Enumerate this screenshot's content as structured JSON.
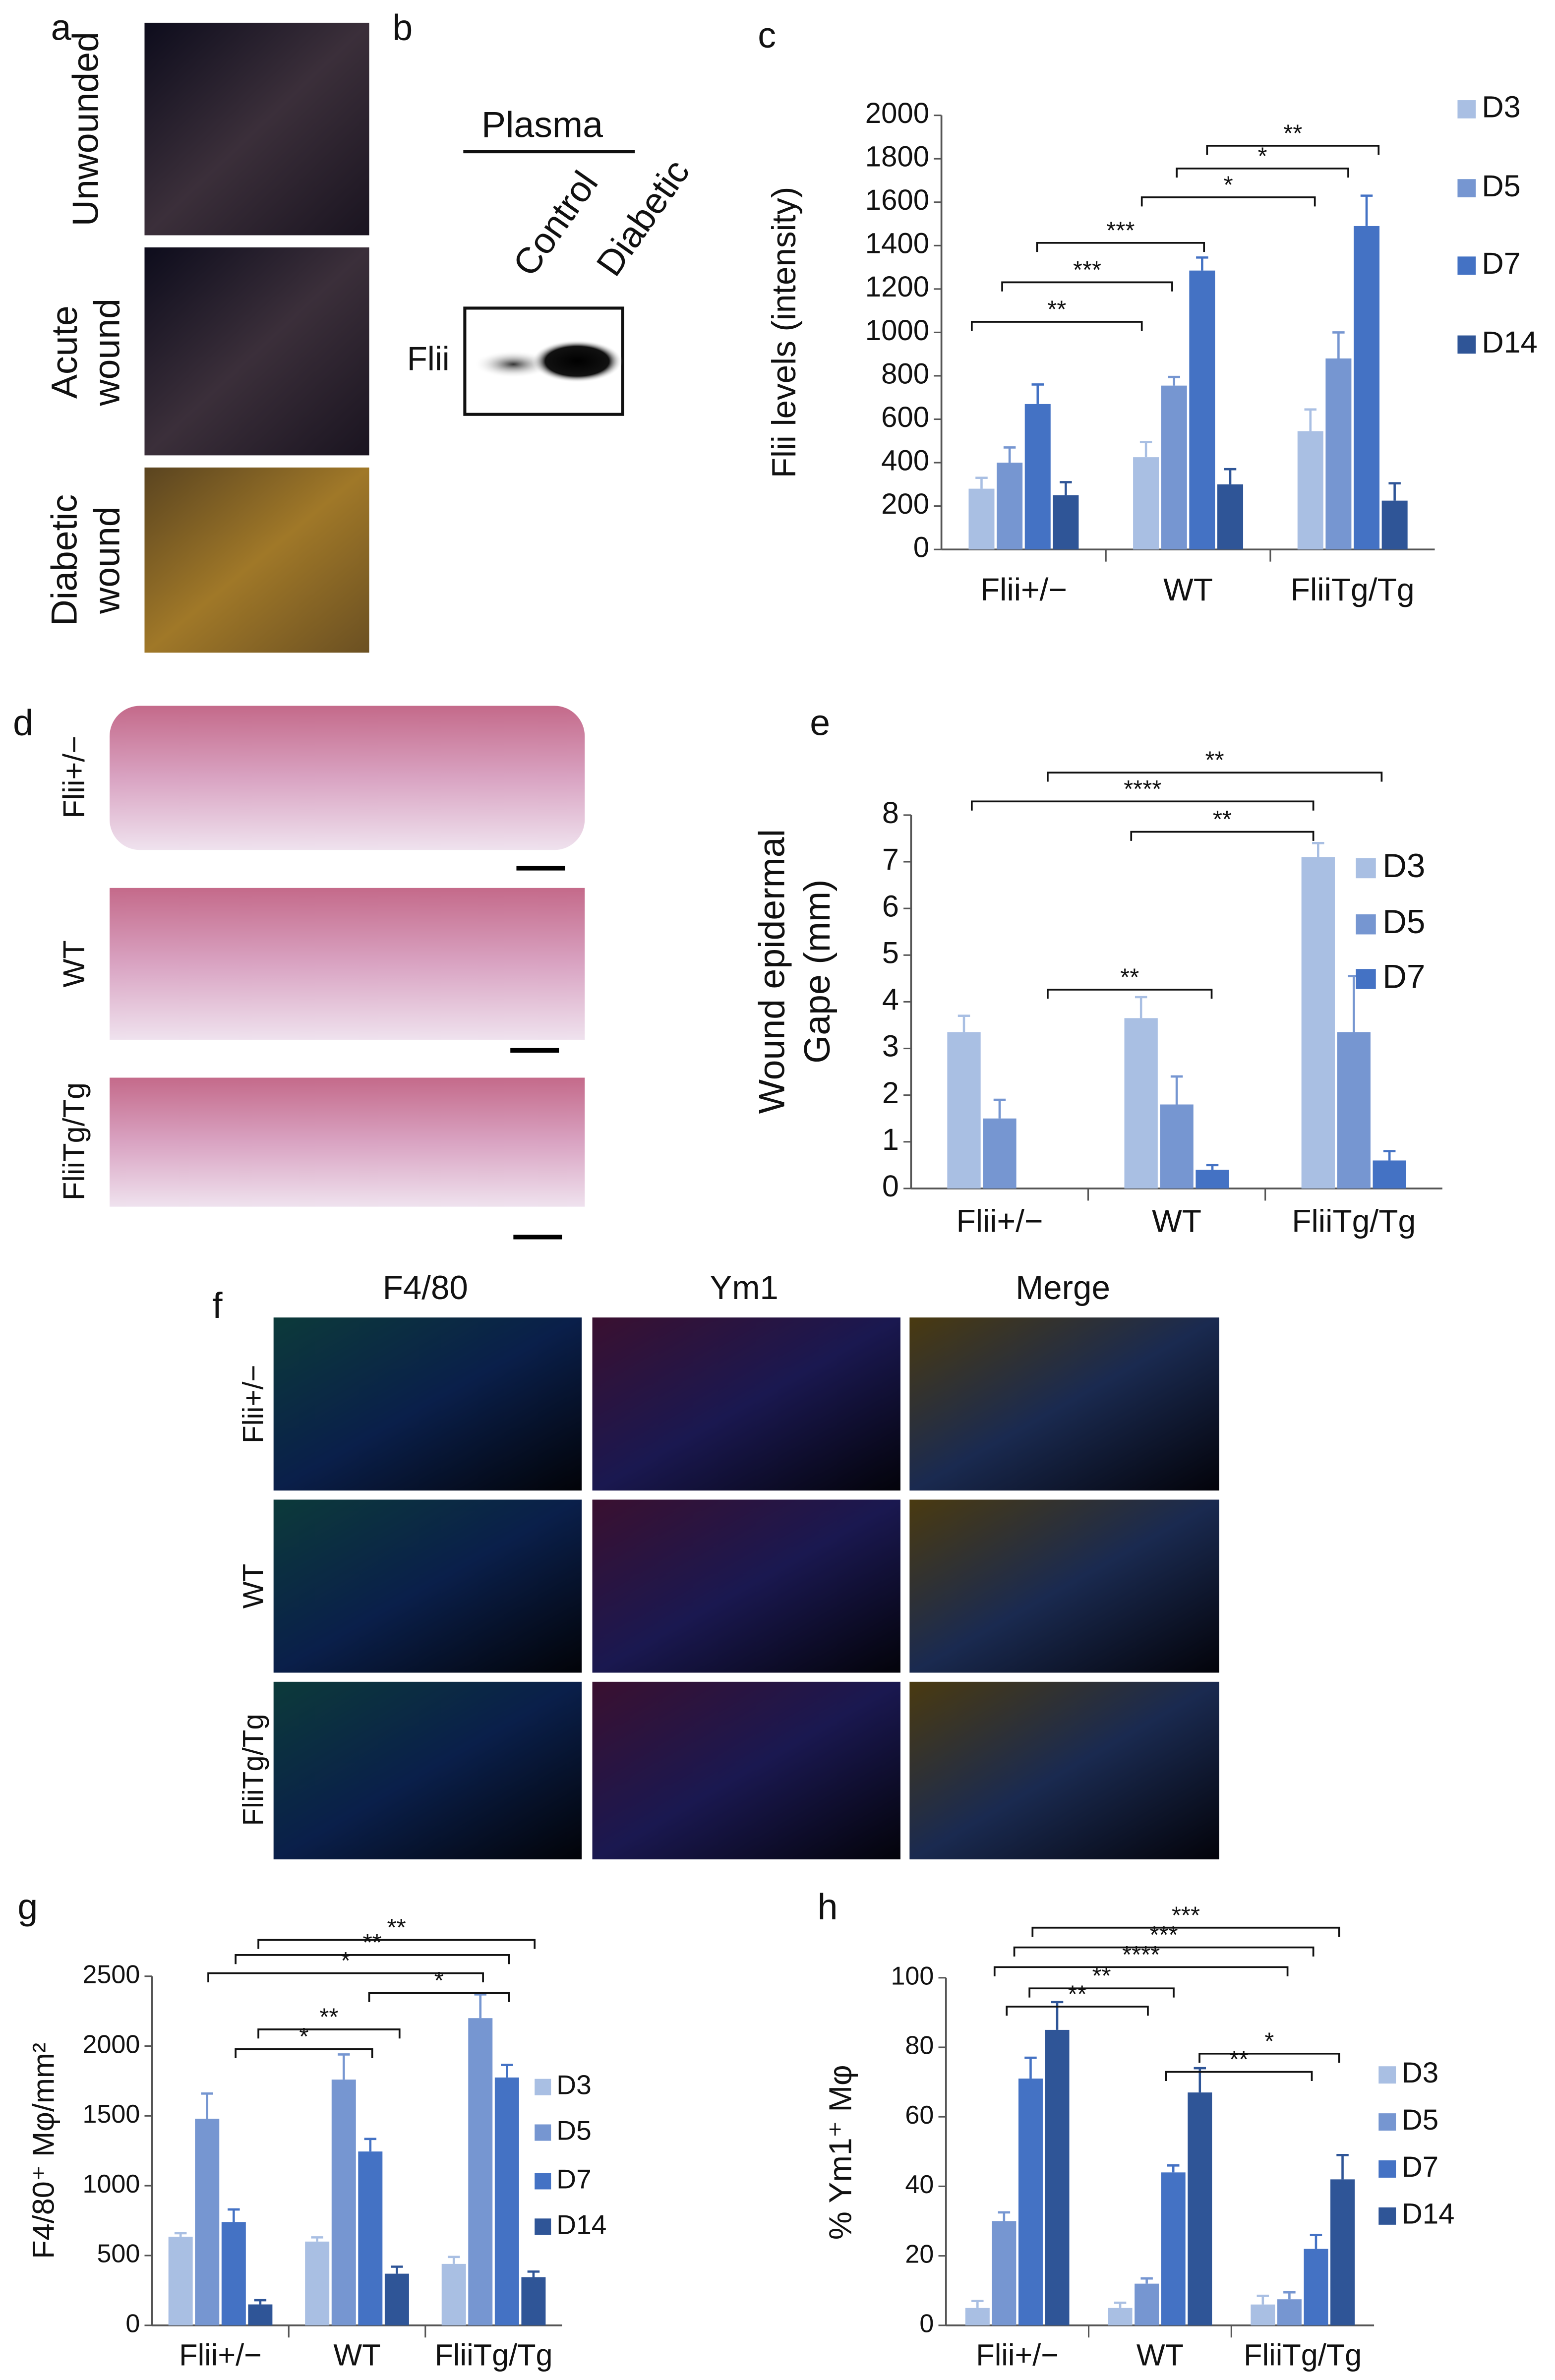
{
  "panel_labels": [
    "a",
    "b",
    "c",
    "d",
    "e",
    "f",
    "g",
    "h"
  ],
  "a": {
    "rows": [
      [
        "Unwounded"
      ],
      [
        "Acute",
        "wound"
      ],
      [
        "Diabetic",
        "wound"
      ]
    ]
  },
  "b": {
    "title": "Plasma",
    "lanes": [
      "Control",
      "Diabetic"
    ],
    "row": "Flii"
  },
  "d": {
    "rows": [
      "Flii+/−",
      "WT",
      "FliiTg/Tg"
    ]
  },
  "f": {
    "columns": [
      "F4/80",
      "Ym1",
      "Merge"
    ],
    "rows": [
      "Flii+/−",
      "WT",
      "FliiTg/Tg"
    ]
  },
  "chart_data": [
    {
      "type": "bar",
      "ylabel": [
        "Flii levels (intensity)"
      ],
      "categories": [
        "Flii+/−",
        "WT",
        "FliiTg/Tg"
      ],
      "ylim": [
        0,
        2000
      ],
      "yticks": [
        0,
        200,
        400,
        600,
        800,
        1000,
        1200,
        1400,
        1600,
        1800,
        2000
      ],
      "legend": "right",
      "series": [
        {
          "name": "D3",
          "color": "#a9bfe3",
          "values": [
            280,
            425,
            545
          ],
          "errors": [
            50,
            70,
            100
          ]
        },
        {
          "name": "D5",
          "color": "#7696d1",
          "values": [
            400,
            755,
            880
          ],
          "errors": [
            70,
            40,
            120
          ]
        },
        {
          "name": "D7",
          "color": "#4472c4",
          "values": [
            670,
            1285,
            1490
          ],
          "errors": [
            90,
            60,
            140
          ]
        },
        {
          "name": "D14",
          "color": "#2f5597",
          "values": [
            250,
            300,
            225
          ],
          "errors": [
            60,
            70,
            80
          ]
        }
      ],
      "annotations": [
        "**",
        "***",
        "***",
        "*",
        "*",
        "**"
      ]
    },
    {
      "type": "bar",
      "ylabel": [
        "Wound epidermal",
        "Gape (mm)"
      ],
      "categories": [
        "Flii+/−",
        "WT",
        "FliiTg/Tg"
      ],
      "ylim": [
        0,
        8
      ],
      "yticks": [
        0,
        1,
        2,
        3,
        4,
        5,
        6,
        7,
        8
      ],
      "legend": "upper right",
      "series": [
        {
          "name": "D3",
          "color": "#a9bfe3",
          "values": [
            3.35,
            3.65,
            7.1
          ],
          "errors": [
            0.35,
            0.45,
            0.3
          ]
        },
        {
          "name": "D5",
          "color": "#7696d1",
          "values": [
            1.5,
            1.8,
            3.35
          ],
          "errors": [
            0.4,
            0.6,
            1.2
          ]
        },
        {
          "name": "D7",
          "color": "#4472c4",
          "values": [
            null,
            0.4,
            0.6
          ],
          "errors": [
            null,
            0.1,
            0.2
          ]
        }
      ],
      "annotations": [
        "**",
        "****",
        "**",
        "**"
      ]
    },
    {
      "type": "bar",
      "ylabel": [
        "F4/80⁺ Mφ/mm²"
      ],
      "categories": [
        "Flii+/−",
        "WT",
        "FliiTg/Tg"
      ],
      "ylim": [
        0,
        2500
      ],
      "yticks": [
        0,
        500,
        1000,
        1500,
        2000,
        2500
      ],
      "legend": "right",
      "series": [
        {
          "name": "D3",
          "color": "#a9bfe3",
          "values": [
            635,
            600,
            440
          ],
          "errors": [
            25,
            30,
            50
          ]
        },
        {
          "name": "D5",
          "color": "#7696d1",
          "values": [
            1480,
            1760,
            2200
          ],
          "errors": [
            180,
            180,
            170
          ]
        },
        {
          "name": "D7",
          "color": "#4472c4",
          "values": [
            740,
            1245,
            1775
          ],
          "errors": [
            90,
            90,
            90
          ]
        },
        {
          "name": "D14",
          "color": "#2f5597",
          "values": [
            150,
            370,
            345
          ],
          "errors": [
            30,
            50,
            40
          ]
        }
      ],
      "annotations": [
        "**",
        "**",
        "*",
        "*",
        "**",
        "*"
      ]
    },
    {
      "type": "bar",
      "ylabel": [
        "% Ym1⁺ Mφ"
      ],
      "categories": [
        "Flii+/−",
        "WT",
        "FliiTg/Tg"
      ],
      "ylim": [
        0,
        100
      ],
      "yticks": [
        0,
        20,
        40,
        60,
        80,
        100
      ],
      "legend": "right",
      "series": [
        {
          "name": "D3",
          "color": "#a9bfe3",
          "values": [
            5,
            5,
            6
          ],
          "errors": [
            2,
            1.5,
            2.5
          ]
        },
        {
          "name": "D5",
          "color": "#7696d1",
          "values": [
            30,
            12,
            7.5
          ],
          "errors": [
            2.5,
            1.5,
            2
          ]
        },
        {
          "name": "D7",
          "color": "#4472c4",
          "values": [
            71,
            44,
            22
          ],
          "errors": [
            6,
            2,
            4
          ]
        },
        {
          "name": "D14",
          "color": "#2f5597",
          "values": [
            85,
            67,
            42
          ],
          "errors": [
            8,
            7,
            7
          ]
        }
      ],
      "annotations": [
        "***",
        "***",
        "****",
        "**",
        "**",
        "*",
        "**"
      ]
    }
  ]
}
